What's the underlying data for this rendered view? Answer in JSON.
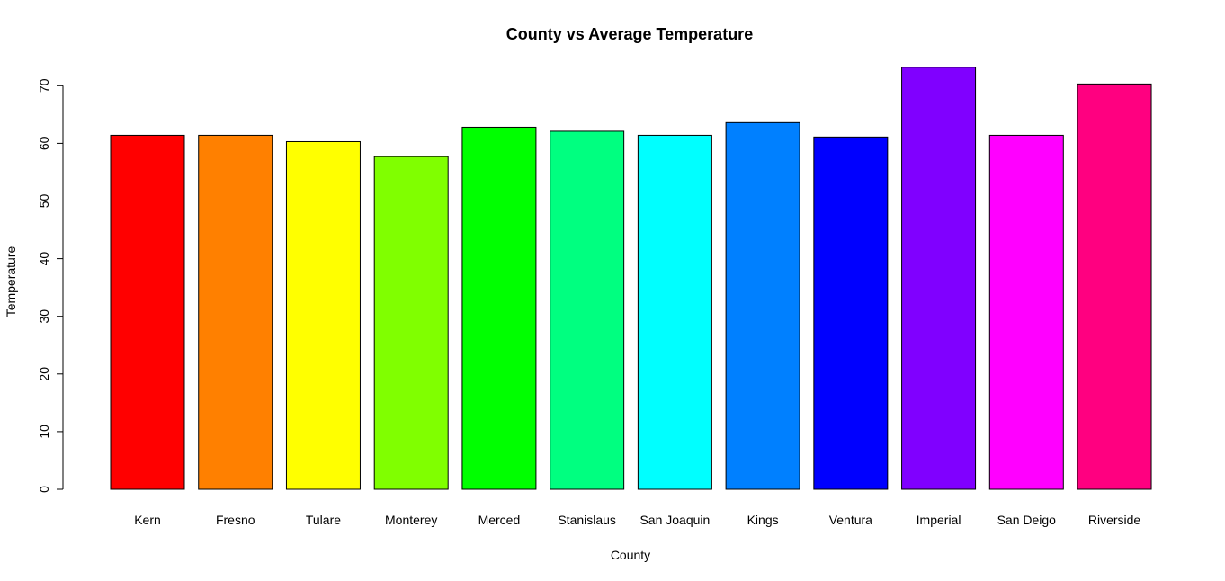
{
  "chart_data": {
    "type": "bar",
    "title": "County vs Average Temperature",
    "xlabel": "County",
    "ylabel": "Temperature",
    "categories": [
      "Kern",
      "Fresno",
      "Tulare",
      "Monterey",
      "Merced",
      "Stanislaus",
      "San Joaquin",
      "Kings",
      "Ventura",
      "Imperial",
      "San Deigo",
      "Riverside"
    ],
    "values": [
      61.4,
      61.4,
      60.3,
      57.7,
      62.8,
      62.1,
      61.4,
      63.6,
      61.1,
      73.2,
      61.4,
      70.3
    ],
    "colors": [
      "#FF0000",
      "#FF8000",
      "#FFFF00",
      "#80FF00",
      "#00FF00",
      "#00FF80",
      "#00FFFF",
      "#0080FF",
      "#0000FF",
      "#8000FF",
      "#FF00FF",
      "#FF0080"
    ],
    "yticks": [
      0,
      10,
      20,
      30,
      40,
      50,
      60,
      70
    ],
    "ylim": [
      0,
      75
    ],
    "grid": false,
    "legend": "none"
  }
}
